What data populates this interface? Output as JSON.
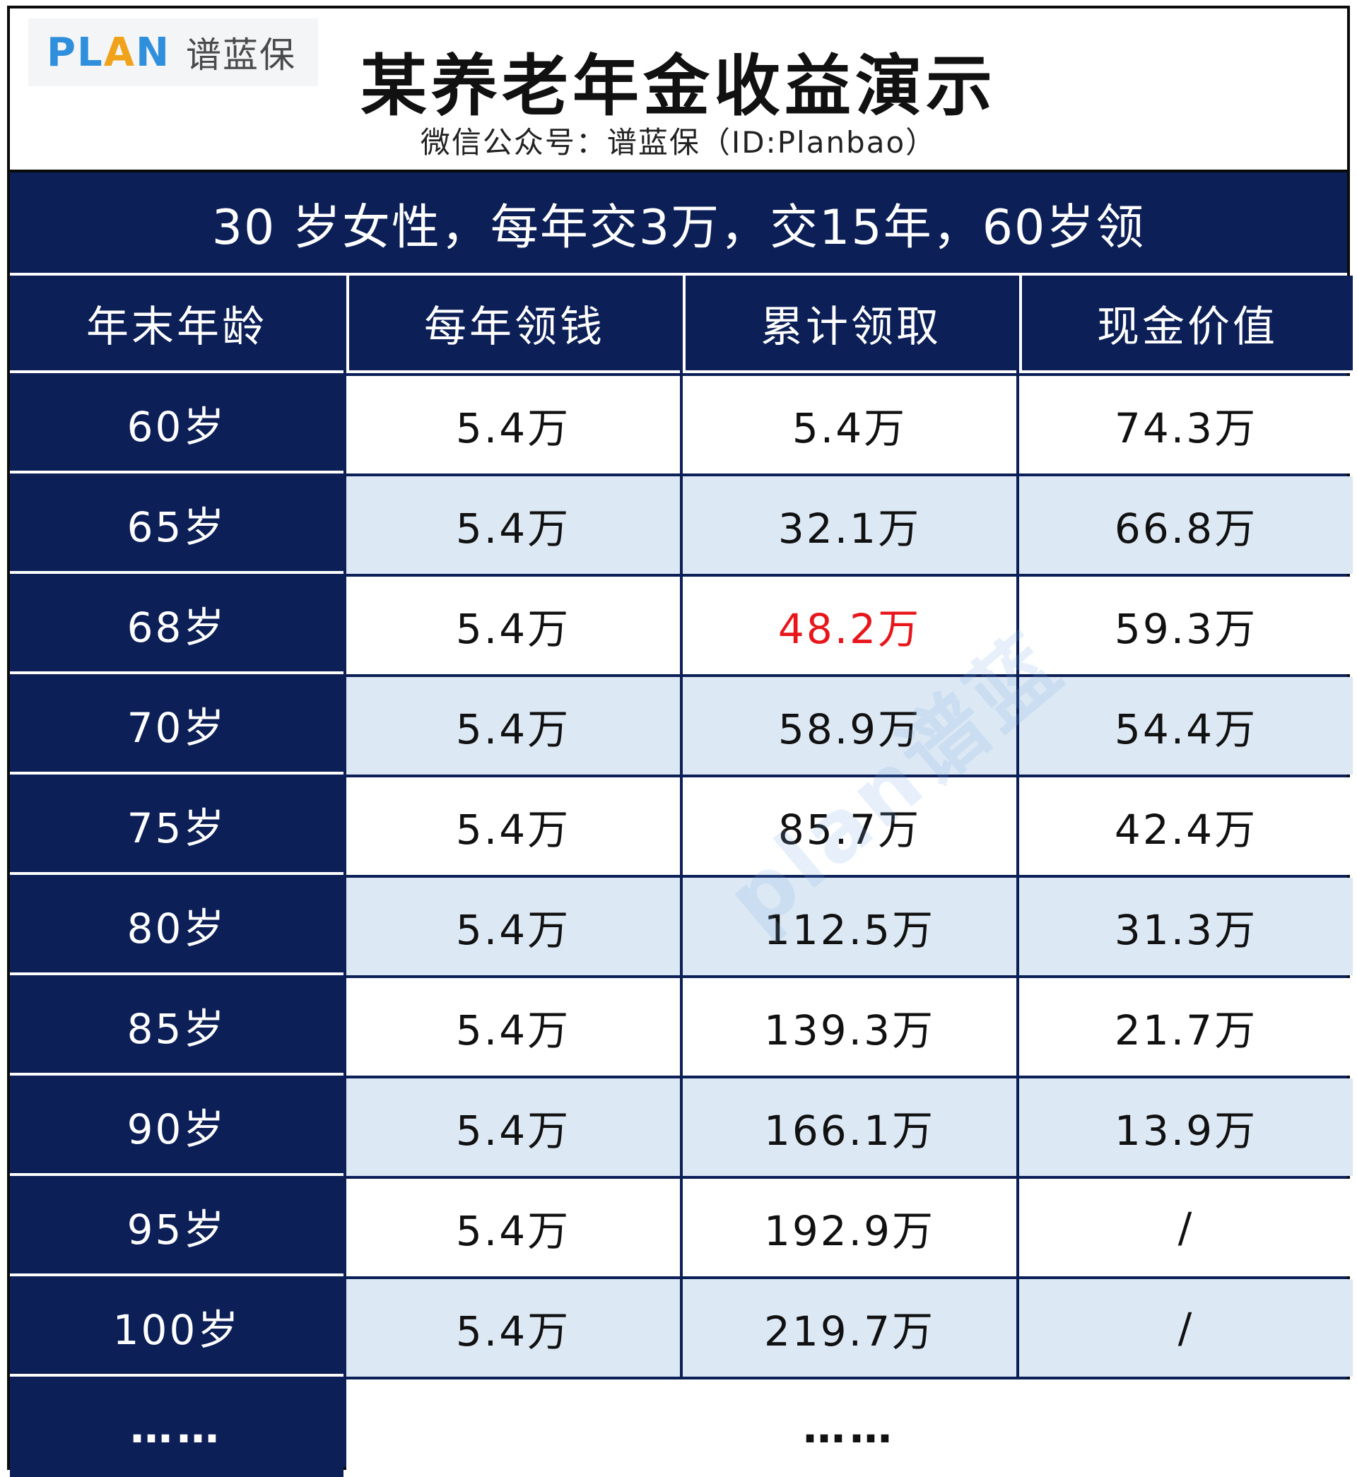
{
  "logo": {
    "plan_text": "PLAN",
    "plan_prefix": "PL",
    "plan_a": "A",
    "plan_suffix": "N",
    "cn_text": "谱蓝保"
  },
  "header": {
    "title": "某养老年金收益演示",
    "subtitle": "微信公众号：谱蓝保（ID:Planbao）"
  },
  "banner": {
    "text": "30  岁女性，每年交3万，交15年，60岁领"
  },
  "table": {
    "columns": [
      "年末年龄",
      "每年领钱",
      "累计领取",
      "现金价值"
    ],
    "rows": [
      {
        "age": "60岁",
        "annual": "5.4万",
        "cumulative": "5.4万",
        "cash": "74.3万"
      },
      {
        "age": "65岁",
        "annual": "5.4万",
        "cumulative": "32.1万",
        "cash": "66.8万"
      },
      {
        "age": "68岁",
        "annual": "5.4万",
        "cumulative": "48.2万",
        "cash": "59.3万"
      },
      {
        "age": "70岁",
        "annual": "5.4万",
        "cumulative": "58.9万",
        "cash": "54.4万"
      },
      {
        "age": "75岁",
        "annual": "5.4万",
        "cumulative": "85.7万",
        "cash": "42.4万"
      },
      {
        "age": "80岁",
        "annual": "5.4万",
        "cumulative": "112.5万",
        "cash": "31.3万"
      },
      {
        "age": "85岁",
        "annual": "5.4万",
        "cumulative": "139.3万",
        "cash": "21.7万"
      },
      {
        "age": "90岁",
        "annual": "5.4万",
        "cumulative": "166.1万",
        "cash": "13.9万"
      },
      {
        "age": "95岁",
        "annual": "5.4万",
        "cumulative": "192.9万",
        "cash": "/"
      },
      {
        "age": "100岁",
        "annual": "5.4万",
        "cumulative": "219.7万",
        "cash": "/"
      }
    ],
    "ellipsis_left": "……",
    "ellipsis_right": "……",
    "highlight_color": "#e8161b"
  },
  "watermark": {
    "text": "plan谱蓝"
  },
  "colors": {
    "navy": "#0c1f57",
    "row_alt": "#dce8f4",
    "logo_blue": "#2f8fdc",
    "logo_orange": "#f0a21a"
  }
}
